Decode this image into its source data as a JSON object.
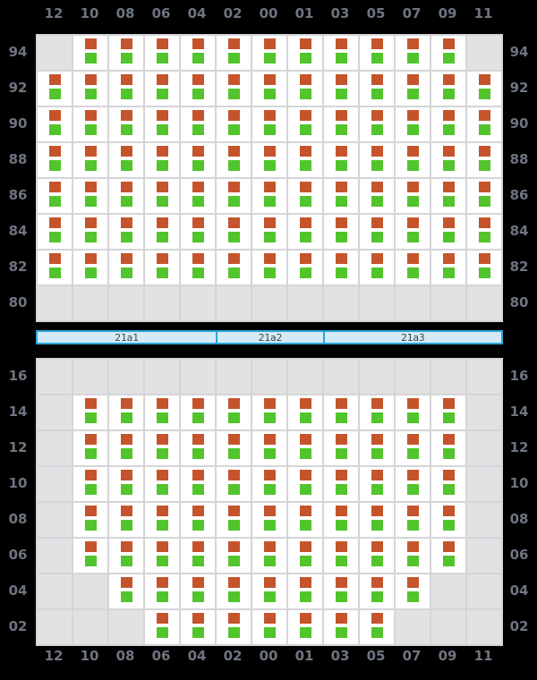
{
  "colors": {
    "background": "#000000",
    "cell_fill": "#ffffff",
    "cell_empty": "#e2e2e4",
    "grid_line": "#d5d5d9",
    "status_top_square": "#c5542c",
    "status_bottom_square": "#52c42c",
    "label_text": "#6e7580",
    "sector_bar_fill": "#d4eaf7",
    "sector_bar_border": "#2aa4da",
    "sector_bar_text": "#444444"
  },
  "columns": [
    "12",
    "10",
    "08",
    "06",
    "04",
    "02",
    "00",
    "01",
    "03",
    "05",
    "07",
    "09",
    "11"
  ],
  "top_panel": {
    "rows": [
      {
        "label": "94",
        "mask": "0111111111110"
      },
      {
        "label": "92",
        "mask": "1111111111111"
      },
      {
        "label": "90",
        "mask": "1111111111111"
      },
      {
        "label": "88",
        "mask": "1111111111111"
      },
      {
        "label": "86",
        "mask": "1111111111111"
      },
      {
        "label": "84",
        "mask": "1111111111111"
      },
      {
        "label": "82",
        "mask": "1111111111111"
      },
      {
        "label": "80",
        "mask": "0000000000000"
      }
    ]
  },
  "sector_bar": {
    "sections": [
      {
        "label": "21a1",
        "span": 5
      },
      {
        "label": "21a2",
        "span": 3
      },
      {
        "label": "21a3",
        "span": 5
      }
    ]
  },
  "bottom_panel": {
    "rows": [
      {
        "label": "16",
        "mask": "0000000000000"
      },
      {
        "label": "14",
        "mask": "0111111111110"
      },
      {
        "label": "12",
        "mask": "0111111111110"
      },
      {
        "label": "10",
        "mask": "0111111111110"
      },
      {
        "label": "08",
        "mask": "0111111111110"
      },
      {
        "label": "06",
        "mask": "0111111111110"
      },
      {
        "label": "04",
        "mask": "0011111111100"
      },
      {
        "label": "02",
        "mask": "0001111111000"
      }
    ]
  }
}
